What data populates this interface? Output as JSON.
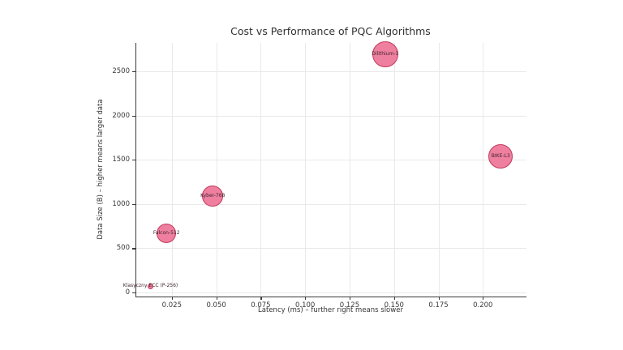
{
  "figure": {
    "background": "#ffffff"
  },
  "chart_data": {
    "type": "scatter",
    "title": "Cost vs Performance of PQC Algorithms",
    "xlabel": "Latency (ms) – further right means slower",
    "ylabel": "Data Size (B) – higher means larger data",
    "xlim": [
      0.005,
      0.2245
    ],
    "ylim": [
      -45,
      2820
    ],
    "x_ticks": [
      0.025,
      0.05,
      0.075,
      0.1,
      0.125,
      0.15,
      0.175,
      0.2
    ],
    "x_tick_labels": [
      "0.025",
      "0.050",
      "0.075",
      "0.100",
      "0.125",
      "0.150",
      "0.175",
      "0.200"
    ],
    "y_ticks": [
      0,
      500,
      1000,
      1500,
      2000,
      2500
    ],
    "y_tick_labels": [
      "0",
      "500",
      "1000",
      "1500",
      "2000",
      "2500"
    ],
    "grid": true,
    "legend": "none",
    "points": [
      {
        "label": "Klasyczny ECC (P-256)",
        "x": 0.013,
        "y": 70,
        "radius_px": 3.5
      },
      {
        "label": "Falcon-512",
        "x": 0.022,
        "y": 666,
        "radius_px": 12
      },
      {
        "label": "Kyber-768",
        "x": 0.048,
        "y": 1090,
        "radius_px": 13
      },
      {
        "label": "Dilithium-3",
        "x": 0.145,
        "y": 2690,
        "radius_px": 16
      },
      {
        "label": "BIKE-L3",
        "x": 0.21,
        "y": 1540,
        "radius_px": 15
      }
    ],
    "colors": {
      "bubble_fill": "#ef7f9f",
      "bubble_stroke": "#c23a5c",
      "grid": "#e9e9e9",
      "axis": "#3b3b3b",
      "tick_text": "#3a3a3a",
      "point_label": "#3e2430"
    }
  }
}
